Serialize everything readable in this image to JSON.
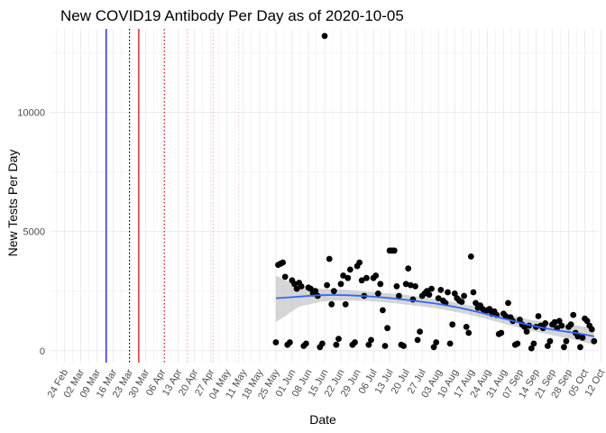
{
  "chart_data": {
    "type": "scatter",
    "title": "New COVID19 Antibody Per Day as of 2020-10-05",
    "xlabel": "Date",
    "ylabel": "New Tests Per Day",
    "x_range": [
      "2020-02-18",
      "2020-10-11"
    ],
    "ylim": [
      -500,
      13500
    ],
    "y_ticks": [
      0,
      5000,
      10000
    ],
    "x_ticks": [
      {
        "date": "2020-02-24",
        "label": "24 Feb"
      },
      {
        "date": "2020-03-02",
        "label": "02 Mar"
      },
      {
        "date": "2020-03-09",
        "label": "09 Mar"
      },
      {
        "date": "2020-03-16",
        "label": "16 Mar"
      },
      {
        "date": "2020-03-23",
        "label": "23 Mar"
      },
      {
        "date": "2020-03-30",
        "label": "30 Mar"
      },
      {
        "date": "2020-04-06",
        "label": "06 Apr"
      },
      {
        "date": "2020-04-13",
        "label": "13 Apr"
      },
      {
        "date": "2020-04-20",
        "label": "20 Apr"
      },
      {
        "date": "2020-04-27",
        "label": "27 Apr"
      },
      {
        "date": "2020-05-04",
        "label": "04 May"
      },
      {
        "date": "2020-05-11",
        "label": "11 May"
      },
      {
        "date": "2020-05-18",
        "label": "18 May"
      },
      {
        "date": "2020-05-25",
        "label": "25 May"
      },
      {
        "date": "2020-06-01",
        "label": "01 Jun"
      },
      {
        "date": "2020-06-08",
        "label": "08 Jun"
      },
      {
        "date": "2020-06-15",
        "label": "15 Jun"
      },
      {
        "date": "2020-06-22",
        "label": "22 Jun"
      },
      {
        "date": "2020-06-29",
        "label": "29 Jun"
      },
      {
        "date": "2020-07-06",
        "label": "06 Jul"
      },
      {
        "date": "2020-07-13",
        "label": "13 Jul"
      },
      {
        "date": "2020-07-20",
        "label": "20 Jul"
      },
      {
        "date": "2020-07-27",
        "label": "27 Jul"
      },
      {
        "date": "2020-08-03",
        "label": "03 Aug"
      },
      {
        "date": "2020-08-10",
        "label": "10 Aug"
      },
      {
        "date": "2020-08-17",
        "label": "17 Aug"
      },
      {
        "date": "2020-08-24",
        "label": "24 Aug"
      },
      {
        "date": "2020-08-31",
        "label": "31 Aug"
      },
      {
        "date": "2020-09-07",
        "label": "07 Sep"
      },
      {
        "date": "2020-09-14",
        "label": "14 Sep"
      },
      {
        "date": "2020-09-21",
        "label": "21 Sep"
      },
      {
        "date": "2020-09-28",
        "label": "28 Sep"
      },
      {
        "date": "2020-10-05",
        "label": "05 Oct"
      },
      {
        "date": "2020-10-12",
        "label": "12 Oct"
      }
    ],
    "grid": true,
    "legend": "none",
    "colors": {
      "points": "#000000",
      "smooth_line": "#3366ff",
      "confidence_band": "#999999",
      "grid": "#ebebeb"
    },
    "reference_lines": [
      {
        "date": "2020-03-13",
        "color": "#0000cc",
        "style": "solid"
      },
      {
        "date": "2020-03-23",
        "color": "#000000",
        "style": "dotted"
      },
      {
        "date": "2020-03-27",
        "color": "#cc0000",
        "style": "solid"
      },
      {
        "date": "2020-04-07",
        "color": "#cc0000",
        "style": "dotted"
      },
      {
        "date": "2020-04-17",
        "color": "#ffb3b3",
        "style": "dotted"
      },
      {
        "date": "2020-04-28",
        "color": "#ffb3b3",
        "style": "dotted"
      },
      {
        "date": "2020-05-09",
        "color": "#ffcccc",
        "style": "dotted"
      }
    ],
    "points": [
      {
        "x": "2020-05-25",
        "y": 350
      },
      {
        "x": "2020-05-26",
        "y": 3600
      },
      {
        "x": "2020-05-27",
        "y": 3650
      },
      {
        "x": "2020-05-28",
        "y": 3700
      },
      {
        "x": "2020-05-29",
        "y": 3100
      },
      {
        "x": "2020-05-30",
        "y": 250
      },
      {
        "x": "2020-05-31",
        "y": 350
      },
      {
        "x": "2020-06-01",
        "y": 2950
      },
      {
        "x": "2020-06-02",
        "y": 2800
      },
      {
        "x": "2020-06-03",
        "y": 2600
      },
      {
        "x": "2020-06-04",
        "y": 2850
      },
      {
        "x": "2020-06-05",
        "y": 2700
      },
      {
        "x": "2020-06-06",
        "y": 200
      },
      {
        "x": "2020-06-07",
        "y": 300
      },
      {
        "x": "2020-06-08",
        "y": 2650
      },
      {
        "x": "2020-06-09",
        "y": 2600
      },
      {
        "x": "2020-06-10",
        "y": 2400
      },
      {
        "x": "2020-06-11",
        "y": 2500
      },
      {
        "x": "2020-06-12",
        "y": 2300
      },
      {
        "x": "2020-06-13",
        "y": 150
      },
      {
        "x": "2020-06-14",
        "y": 300
      },
      {
        "x": "2020-06-15",
        "y": 13200
      },
      {
        "x": "2020-06-16",
        "y": 2750
      },
      {
        "x": "2020-06-17",
        "y": 3850
      },
      {
        "x": "2020-06-18",
        "y": 1950
      },
      {
        "x": "2020-06-19",
        "y": 2500
      },
      {
        "x": "2020-06-20",
        "y": 250
      },
      {
        "x": "2020-06-21",
        "y": 500
      },
      {
        "x": "2020-06-22",
        "y": 2800
      },
      {
        "x": "2020-06-23",
        "y": 3150
      },
      {
        "x": "2020-06-24",
        "y": 1950
      },
      {
        "x": "2020-06-25",
        "y": 3050
      },
      {
        "x": "2020-06-26",
        "y": 3400
      },
      {
        "x": "2020-06-27",
        "y": 250
      },
      {
        "x": "2020-06-28",
        "y": 350
      },
      {
        "x": "2020-06-29",
        "y": 3550
      },
      {
        "x": "2020-06-30",
        "y": 3700
      },
      {
        "x": "2020-07-01",
        "y": 2950
      },
      {
        "x": "2020-07-02",
        "y": 2300
      },
      {
        "x": "2020-07-03",
        "y": 3050
      },
      {
        "x": "2020-07-04",
        "y": 250
      },
      {
        "x": "2020-07-05",
        "y": 450
      },
      {
        "x": "2020-07-06",
        "y": 3050
      },
      {
        "x": "2020-07-07",
        "y": 3150
      },
      {
        "x": "2020-07-08",
        "y": 2400
      },
      {
        "x": "2020-07-09",
        "y": 2800
      },
      {
        "x": "2020-07-10",
        "y": 1700
      },
      {
        "x": "2020-07-11",
        "y": 200
      },
      {
        "x": "2020-07-12",
        "y": 950
      },
      {
        "x": "2020-07-13",
        "y": 4200
      },
      {
        "x": "2020-07-14",
        "y": 4200
      },
      {
        "x": "2020-07-15",
        "y": 4200
      },
      {
        "x": "2020-07-16",
        "y": 2700
      },
      {
        "x": "2020-07-17",
        "y": 2300
      },
      {
        "x": "2020-07-18",
        "y": 250
      },
      {
        "x": "2020-07-19",
        "y": 200
      },
      {
        "x": "2020-07-20",
        "y": 2800
      },
      {
        "x": "2020-07-21",
        "y": 3450
      },
      {
        "x": "2020-07-22",
        "y": 2750
      },
      {
        "x": "2020-07-23",
        "y": 2150
      },
      {
        "x": "2020-07-24",
        "y": 2700
      },
      {
        "x": "2020-07-25",
        "y": 450
      },
      {
        "x": "2020-07-26",
        "y": 800
      },
      {
        "x": "2020-07-27",
        "y": 2300
      },
      {
        "x": "2020-07-28",
        "y": 2400
      },
      {
        "x": "2020-07-29",
        "y": 2500
      },
      {
        "x": "2020-07-30",
        "y": 2350
      },
      {
        "x": "2020-07-31",
        "y": 2600
      },
      {
        "x": "2020-08-01",
        "y": 150
      },
      {
        "x": "2020-08-02",
        "y": 350
      },
      {
        "x": "2020-08-03",
        "y": 2200
      },
      {
        "x": "2020-08-04",
        "y": 2550
      },
      {
        "x": "2020-08-05",
        "y": 2100
      },
      {
        "x": "2020-08-06",
        "y": 2000
      },
      {
        "x": "2020-08-07",
        "y": 2450
      },
      {
        "x": "2020-08-08",
        "y": 300
      },
      {
        "x": "2020-08-09",
        "y": 1100
      },
      {
        "x": "2020-08-10",
        "y": 2400
      },
      {
        "x": "2020-08-11",
        "y": 2200
      },
      {
        "x": "2020-08-12",
        "y": 2100
      },
      {
        "x": "2020-08-13",
        "y": 2050
      },
      {
        "x": "2020-08-14",
        "y": 2300
      },
      {
        "x": "2020-08-15",
        "y": 1000
      },
      {
        "x": "2020-08-16",
        "y": 750
      },
      {
        "x": "2020-08-17",
        "y": 3950
      },
      {
        "x": "2020-08-18",
        "y": 2450
      },
      {
        "x": "2020-08-19",
        "y": 2000
      },
      {
        "x": "2020-08-20",
        "y": 1800
      },
      {
        "x": "2020-08-21",
        "y": 1900
      },
      {
        "x": "2020-08-22",
        "y": 1750
      },
      {
        "x": "2020-08-23",
        "y": 1650
      },
      {
        "x": "2020-08-24",
        "y": 1700
      },
      {
        "x": "2020-08-25",
        "y": 1750
      },
      {
        "x": "2020-08-26",
        "y": 1550
      },
      {
        "x": "2020-08-27",
        "y": 1650
      },
      {
        "x": "2020-08-28",
        "y": 1500
      },
      {
        "x": "2020-08-29",
        "y": 700
      },
      {
        "x": "2020-08-30",
        "y": 750
      },
      {
        "x": "2020-08-31",
        "y": 1550
      },
      {
        "x": "2020-09-01",
        "y": 1450
      },
      {
        "x": "2020-09-02",
        "y": 2000
      },
      {
        "x": "2020-09-03",
        "y": 1400
      },
      {
        "x": "2020-09-04",
        "y": 1250
      },
      {
        "x": "2020-09-05",
        "y": 250
      },
      {
        "x": "2020-09-06",
        "y": 300
      },
      {
        "x": "2020-09-07",
        "y": 1300
      },
      {
        "x": "2020-09-08",
        "y": 1100
      },
      {
        "x": "2020-09-09",
        "y": 1000
      },
      {
        "x": "2020-09-10",
        "y": 800
      },
      {
        "x": "2020-09-11",
        "y": 1050
      },
      {
        "x": "2020-09-12",
        "y": 100
      },
      {
        "x": "2020-09-13",
        "y": 300
      },
      {
        "x": "2020-09-14",
        "y": 1000
      },
      {
        "x": "2020-09-15",
        "y": 1450
      },
      {
        "x": "2020-09-16",
        "y": 1050
      },
      {
        "x": "2020-09-17",
        "y": 950
      },
      {
        "x": "2020-09-18",
        "y": 1150
      },
      {
        "x": "2020-09-19",
        "y": 200
      },
      {
        "x": "2020-09-20",
        "y": 400
      },
      {
        "x": "2020-09-21",
        "y": 1100
      },
      {
        "x": "2020-09-22",
        "y": 1200
      },
      {
        "x": "2020-09-23",
        "y": 950
      },
      {
        "x": "2020-09-24",
        "y": 1250
      },
      {
        "x": "2020-09-25",
        "y": 1050
      },
      {
        "x": "2020-09-26",
        "y": 150
      },
      {
        "x": "2020-09-27",
        "y": 400
      },
      {
        "x": "2020-09-28",
        "y": 1000
      },
      {
        "x": "2020-09-29",
        "y": 1100
      },
      {
        "x": "2020-09-30",
        "y": 1500
      },
      {
        "x": "2020-10-01",
        "y": 750
      },
      {
        "x": "2020-10-02",
        "y": 600
      },
      {
        "x": "2020-10-03",
        "y": 150
      },
      {
        "x": "2020-10-04",
        "y": 550
      },
      {
        "x": "2020-10-05",
        "y": 1350
      },
      {
        "x": "2020-10-06",
        "y": 1250
      },
      {
        "x": "2020-10-07",
        "y": 1050
      },
      {
        "x": "2020-10-08",
        "y": 900
      },
      {
        "x": "2020-10-09",
        "y": 400
      }
    ],
    "smooth": [
      {
        "x": "2020-05-25",
        "y": 2200,
        "lo": 1200,
        "hi": 3150
      },
      {
        "x": "2020-06-04",
        "y": 2270,
        "lo": 1850,
        "hi": 2700
      },
      {
        "x": "2020-06-14",
        "y": 2330,
        "lo": 2070,
        "hi": 2600
      },
      {
        "x": "2020-06-24",
        "y": 2330,
        "lo": 2110,
        "hi": 2560
      },
      {
        "x": "2020-07-04",
        "y": 2280,
        "lo": 2080,
        "hi": 2480
      },
      {
        "x": "2020-07-14",
        "y": 2200,
        "lo": 2000,
        "hi": 2400
      },
      {
        "x": "2020-07-24",
        "y": 2090,
        "lo": 1890,
        "hi": 2290
      },
      {
        "x": "2020-08-03",
        "y": 1960,
        "lo": 1760,
        "hi": 2160
      },
      {
        "x": "2020-08-13",
        "y": 1780,
        "lo": 1580,
        "hi": 1980
      },
      {
        "x": "2020-08-23",
        "y": 1550,
        "lo": 1350,
        "hi": 1760
      },
      {
        "x": "2020-09-02",
        "y": 1300,
        "lo": 1080,
        "hi": 1520
      },
      {
        "x": "2020-09-12",
        "y": 1060,
        "lo": 840,
        "hi": 1290
      },
      {
        "x": "2020-09-22",
        "y": 870,
        "lo": 630,
        "hi": 1130
      },
      {
        "x": "2020-10-02",
        "y": 730,
        "lo": 430,
        "hi": 1050
      },
      {
        "x": "2020-10-09",
        "y": 600,
        "lo": 250,
        "hi": 950
      }
    ]
  }
}
